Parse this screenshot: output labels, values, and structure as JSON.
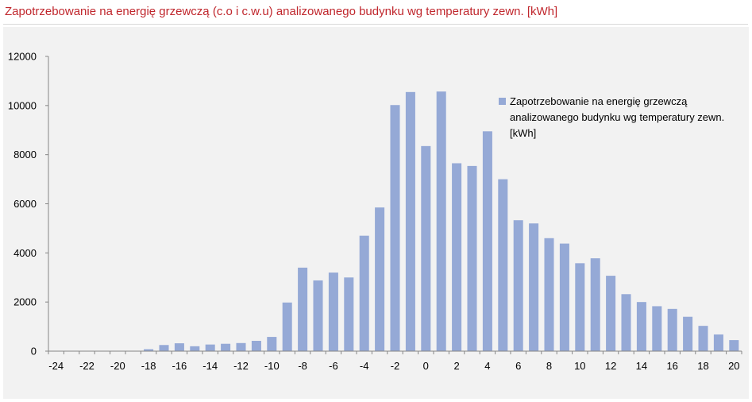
{
  "title": "Zapotrzebowanie na energię grzewczą (c.o i c.w.u) analizowanego budynku wg temperatury zewn. [kWh]",
  "legend_label": "Zapotrzebowanie na energię grzewczą analizowanego budynku  wg temperatury zewn. [kWh]",
  "colors": {
    "bar": "#95a9d6",
    "title": "#c0272d",
    "panel": "#f2f2f2",
    "axis": "#868686"
  },
  "chart_data": {
    "type": "bar",
    "title": "Zapotrzebowanie na energię grzewczą (c.o i c.w.u) analizowanego budynku wg temperatury zewn. [kWh]",
    "xlabel": "",
    "ylabel": "",
    "ylim": [
      0,
      12000
    ],
    "yticks": [
      0,
      2000,
      4000,
      6000,
      8000,
      10000,
      12000
    ],
    "xticks": [
      -24,
      -22,
      -20,
      -18,
      -16,
      -14,
      -12,
      -10,
      -8,
      -6,
      -4,
      -2,
      0,
      2,
      4,
      6,
      8,
      10,
      12,
      14,
      16,
      18,
      20
    ],
    "grid": false,
    "legend_position": "top-right",
    "categories": [
      -24,
      -23,
      -22,
      -21,
      -20,
      -19,
      -18,
      -17,
      -16,
      -15,
      -14,
      -13,
      -12,
      -11,
      -10,
      -9,
      -8,
      -7,
      -6,
      -5,
      -4,
      -3,
      -2,
      -1,
      0,
      1,
      2,
      3,
      4,
      5,
      6,
      7,
      8,
      9,
      10,
      11,
      12,
      13,
      14,
      15,
      16,
      17,
      18,
      19,
      20
    ],
    "series": [
      {
        "name": "Zapotrzebowanie na energię grzewczą analizowanego budynku  wg temperatury zewn. [kWh]",
        "values": [
          0,
          0,
          0,
          0,
          0,
          0,
          80,
          250,
          320,
          200,
          270,
          300,
          330,
          420,
          580,
          1980,
          3400,
          2880,
          3200,
          3000,
          4700,
          5850,
          10020,
          10550,
          8350,
          10570,
          7650,
          7540,
          8950,
          7000,
          5330,
          5200,
          4600,
          4380,
          3580,
          3780,
          3070,
          2320,
          2000,
          1830,
          1720,
          1400,
          1030,
          680,
          450
        ]
      }
    ]
  }
}
